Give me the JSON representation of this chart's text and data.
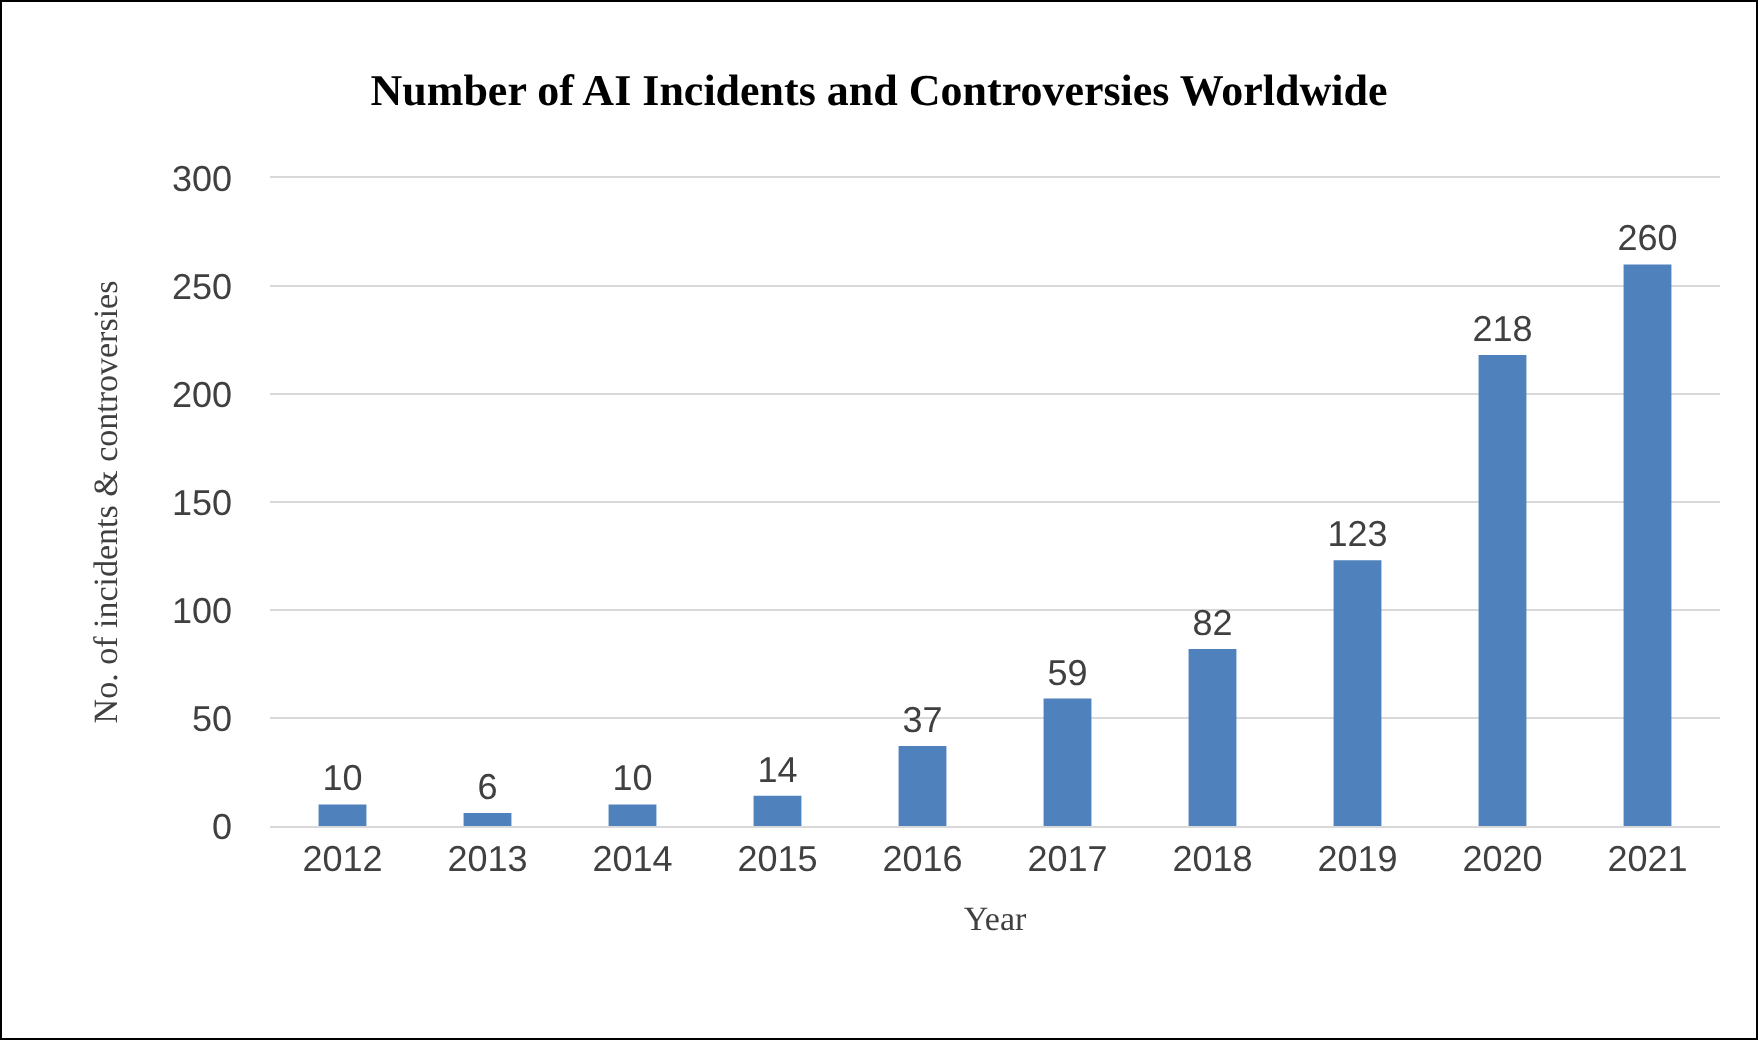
{
  "chart_data": {
    "type": "bar",
    "title": "Number of AI Incidents and Controversies Worldwide",
    "xlabel": "Year",
    "ylabel": "No. of incidents & controversies",
    "categories": [
      "2012",
      "2013",
      "2014",
      "2015",
      "2016",
      "2017",
      "2018",
      "2019",
      "2020",
      "2021"
    ],
    "values": [
      10,
      6,
      10,
      14,
      37,
      59,
      82,
      123,
      218,
      260
    ],
    "color": "#4f81bd",
    "ylim": [
      0,
      300
    ],
    "yticks": [
      0,
      50,
      100,
      150,
      200,
      250,
      300
    ],
    "grid": "y",
    "data_labels": true
  }
}
